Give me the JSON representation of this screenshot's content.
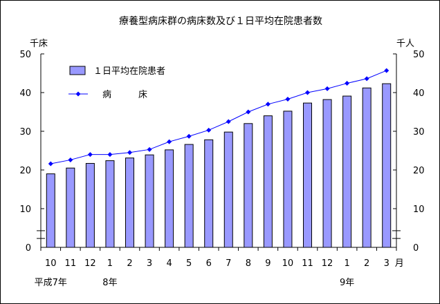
{
  "chart_data": {
    "type": "bar",
    "title": "療養型病床群の病床数及び１日平均在院患者数",
    "categories": [
      "10",
      "11",
      "12",
      "1",
      "2",
      "3",
      "4",
      "5",
      "6",
      "7",
      "8",
      "9",
      "10",
      "11",
      "12",
      "1",
      "2",
      "3"
    ],
    "month_unit": "月",
    "year_labels": [
      {
        "text": "平成7年",
        "category_index": 0
      },
      {
        "text": "8年",
        "category_index": 3
      },
      {
        "text": "9年",
        "category_index": 15
      }
    ],
    "y_left": {
      "unit": "千床",
      "range": [
        0,
        50
      ],
      "ticks": [
        0,
        10,
        20,
        30,
        40,
        50
      ]
    },
    "y_right": {
      "unit": "千人",
      "range": [
        0,
        50
      ],
      "ticks": [
        0,
        10,
        20,
        30,
        40,
        50
      ]
    },
    "axis_break": true,
    "legend_position": "top-left",
    "grid": false,
    "series": [
      {
        "name": "１日平均在院患者",
        "kind": "bar",
        "axis": "right",
        "color": "#9999ff",
        "values": [
          19.0,
          20.5,
          21.7,
          22.4,
          23.1,
          23.9,
          25.2,
          26.6,
          27.8,
          29.8,
          32.0,
          34.0,
          35.2,
          37.3,
          38.2,
          39.1,
          41.2,
          42.3
        ]
      },
      {
        "name": "病　　　床",
        "kind": "line",
        "axis": "left",
        "color": "#0000ff",
        "values": [
          21.6,
          22.6,
          24.0,
          24.0,
          24.5,
          25.3,
          27.3,
          28.7,
          30.3,
          32.5,
          35.0,
          37.0,
          38.3,
          40.0,
          41.0,
          42.4,
          43.6,
          45.7
        ]
      }
    ]
  }
}
